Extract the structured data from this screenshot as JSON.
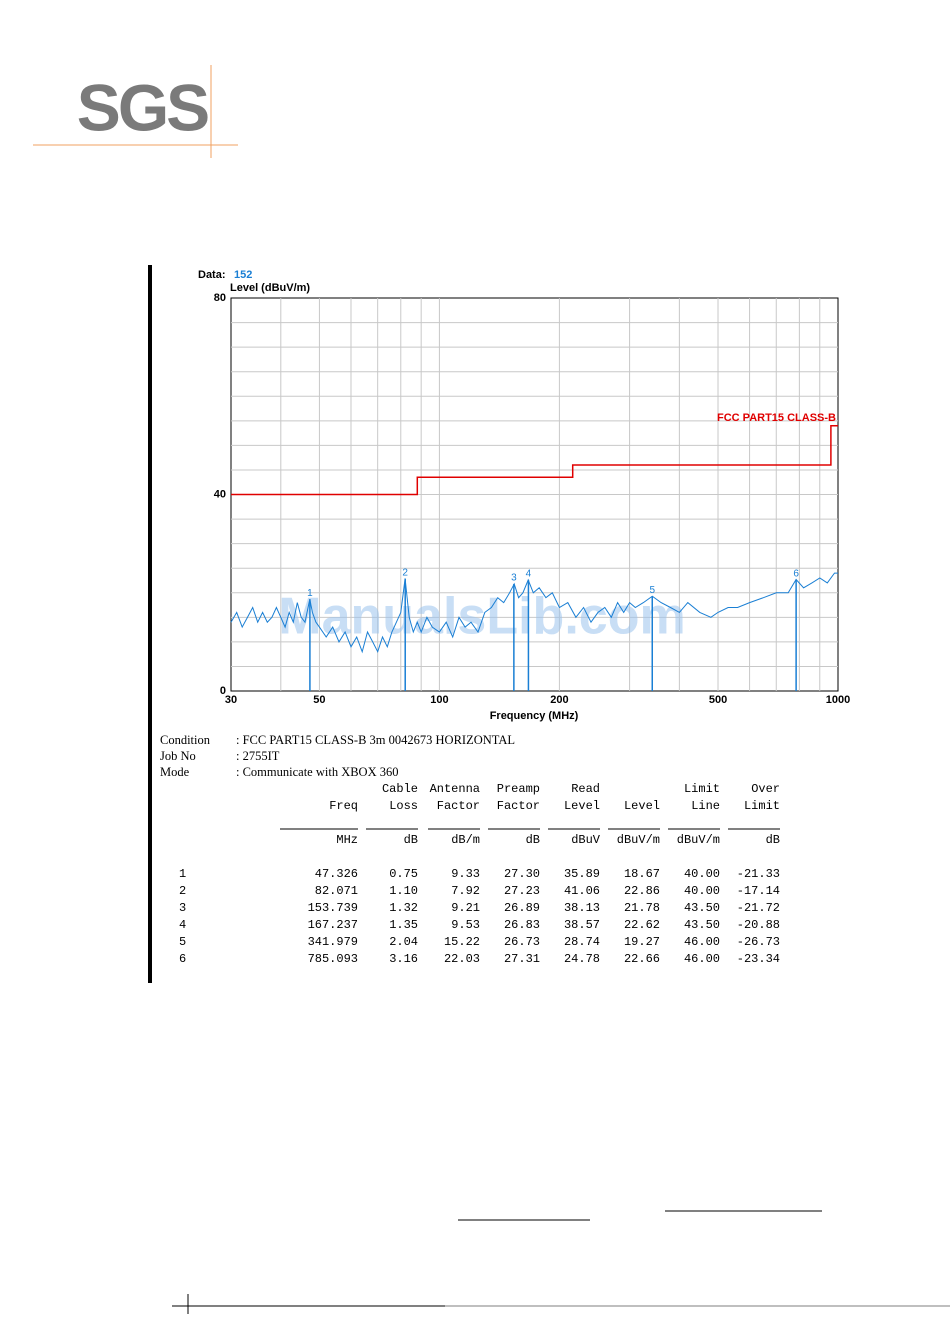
{
  "logo": "SGS",
  "chart_data": {
    "type": "line",
    "data_label": "Data:",
    "data_number": "152",
    "y_label": "Level (dBuV/m)",
    "x_label": "Frequency (MHz)",
    "log_x": true,
    "grid": true,
    "xlim": [
      30,
      1000
    ],
    "ylim": [
      0,
      80
    ],
    "xticks": [
      30,
      50,
      100,
      200,
      500,
      1000
    ],
    "yticks": [
      0,
      40,
      80
    ],
    "xgrid": [
      40,
      50,
      60,
      70,
      80,
      90,
      100,
      200,
      300,
      400,
      500,
      600,
      700,
      800,
      900
    ],
    "ygrid": [
      5,
      10,
      15,
      20,
      25,
      30,
      35,
      40,
      45,
      50,
      55,
      60,
      65,
      70,
      75
    ],
    "watermark": "ManualsLib.com",
    "series": [
      {
        "name": "FCC PART15 CLASS-B",
        "color": "#e00000",
        "x": [
          30,
          88,
          88,
          216,
          216,
          960,
          960,
          1000
        ],
        "values": [
          40,
          40,
          43.5,
          43.5,
          46,
          46,
          54,
          54
        ]
      },
      {
        "color": "#1a7fd4",
        "x": [
          30,
          31,
          32,
          33,
          34,
          35,
          36,
          37,
          38,
          39,
          40,
          41,
          42,
          43,
          44,
          45,
          46,
          47.3,
          48,
          49,
          50,
          52,
          54,
          56,
          58,
          60,
          62,
          64,
          66,
          68,
          70,
          72,
          74,
          76,
          78,
          80,
          82,
          84,
          86,
          88,
          90,
          93,
          96,
          100,
          104,
          108,
          112,
          116,
          120,
          125,
          130,
          135,
          140,
          145,
          150,
          154,
          158,
          162,
          167,
          172,
          178,
          185,
          192,
          200,
          210,
          220,
          230,
          240,
          250,
          260,
          270,
          280,
          290,
          300,
          310,
          325,
          342,
          360,
          380,
          400,
          420,
          450,
          480,
          500,
          530,
          560,
          600,
          650,
          700,
          750,
          785,
          820,
          860,
          900,
          940,
          980,
          1000
        ],
        "values": [
          14,
          16,
          13,
          15,
          17,
          14,
          16,
          14,
          15,
          17,
          15,
          13,
          16,
          14,
          18,
          15,
          14,
          18.7,
          16,
          14,
          13,
          11,
          13,
          10,
          12,
          9,
          11,
          8,
          12,
          10,
          8,
          11,
          9,
          12,
          14,
          16,
          22.9,
          15,
          12,
          14,
          12,
          15,
          13,
          12,
          14,
          11,
          15,
          13,
          14,
          12,
          16,
          17,
          19,
          18,
          20,
          21.8,
          19,
          20,
          22.6,
          20,
          21,
          19,
          20,
          17,
          18,
          15,
          17,
          14,
          16,
          17,
          15,
          18,
          16,
          18,
          17,
          18,
          19.3,
          18,
          17,
          16,
          18,
          16,
          15,
          16,
          17,
          17,
          18,
          19,
          20,
          20,
          22.7,
          21,
          22,
          23,
          22,
          24,
          24
        ]
      }
    ],
    "markers": {
      "labels": [
        "1",
        "2",
        "3",
        "4",
        "5",
        "6"
      ],
      "x": [
        47.326,
        82.071,
        153.739,
        167.237,
        341.979,
        785.093
      ],
      "values": [
        18.67,
        22.86,
        21.78,
        22.62,
        19.27,
        22.66
      ],
      "color": "#1a7fd4"
    }
  },
  "conditions": [
    {
      "label": "Condition",
      "value": ": FCC PART15 CLASS-B 3m 0042673 HORIZONTAL"
    },
    {
      "label": "Job No",
      "value": ": 2755IT"
    },
    {
      "label": "Mode",
      "value": ": Communicate with XBOX 360"
    }
  ],
  "table": {
    "columns": [
      {
        "name": [
          "Freq"
        ],
        "unit": "MHz"
      },
      {
        "name": [
          "Cable",
          "Loss"
        ],
        "unit": "dB"
      },
      {
        "name": [
          "Antenna",
          "Factor"
        ],
        "unit": "dB/m"
      },
      {
        "name": [
          "Preamp",
          "Factor"
        ],
        "unit": "dB"
      },
      {
        "name": [
          "Read",
          "Level"
        ],
        "unit": "dBuV"
      },
      {
        "name": [
          "Level"
        ],
        "unit": "dBuV/m"
      },
      {
        "name": [
          "Limit",
          "Line"
        ],
        "unit": "dBuV/m"
      },
      {
        "name": [
          "Over",
          "Limit"
        ],
        "unit": "dB"
      }
    ],
    "rows": [
      [
        "1",
        "47.326",
        "0.75",
        "9.33",
        "27.30",
        "35.89",
        "18.67",
        "40.00",
        "-21.33"
      ],
      [
        "2",
        "82.071",
        "1.10",
        "7.92",
        "27.23",
        "41.06",
        "22.86",
        "40.00",
        "-17.14"
      ],
      [
        "3",
        "153.739",
        "1.32",
        "9.21",
        "26.89",
        "38.13",
        "21.78",
        "43.50",
        "-21.72"
      ],
      [
        "4",
        "167.237",
        "1.35",
        "9.53",
        "26.83",
        "38.57",
        "22.62",
        "43.50",
        "-20.88"
      ],
      [
        "5",
        "341.979",
        "2.04",
        "15.22",
        "26.73",
        "28.74",
        "19.27",
        "46.00",
        "-26.73"
      ],
      [
        "6",
        "785.093",
        "3.16",
        "22.03",
        "27.31",
        "24.78",
        "22.66",
        "46.00",
        "-23.34"
      ]
    ]
  }
}
